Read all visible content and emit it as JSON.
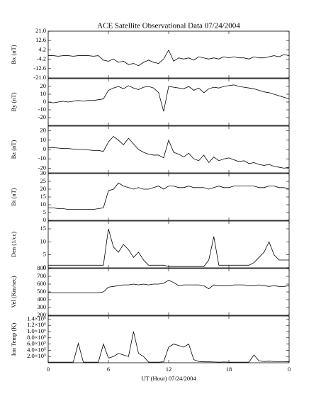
{
  "title": "ACE Satellite Observational Data   07/24/2004",
  "chart_data": [
    {
      "type": "line",
      "ylabel": "Bx (nT)",
      "color": "#000000",
      "xlim": [
        0,
        24
      ],
      "xticks": [
        0,
        6,
        12,
        18,
        {
          "value": 24,
          "label": "0"
        }
      ],
      "ylim": [
        -21,
        21
      ],
      "yticks": [
        {
          "value": 21,
          "label": "21.0"
        },
        12.6,
        4.2,
        -4.2,
        -12.6,
        {
          "value": -21,
          "label": "-21.0"
        }
      ],
      "x": [
        0,
        0.5,
        1,
        1.5,
        2,
        2.5,
        3,
        3.5,
        4,
        4.5,
        5,
        5.5,
        6,
        6.5,
        7,
        7.5,
        8,
        8.5,
        9,
        9.5,
        10,
        10.5,
        11,
        11.5,
        12,
        12.5,
        13,
        13.5,
        14,
        14.5,
        15,
        15.5,
        16,
        16.5,
        17,
        17.5,
        18,
        18.5,
        19,
        19.5,
        20,
        20.5,
        21,
        21.5,
        22,
        22.5,
        23,
        23.5,
        24
      ],
      "values": [
        -1,
        -1,
        -1.5,
        -1,
        -1,
        -1.5,
        -1,
        -1,
        -1,
        -1.5,
        -1,
        -5,
        -6,
        -4,
        -7,
        -6,
        -9,
        -8,
        -10,
        -7,
        -5,
        -7,
        -8,
        -4,
        4,
        -6,
        -3,
        -4,
        -3,
        -5,
        -2,
        -3,
        -4,
        -3,
        -4,
        -2,
        -3,
        -2,
        -3,
        -3,
        -4,
        -2,
        -3,
        -3,
        -2,
        -1,
        -2,
        0,
        -1
      ]
    },
    {
      "type": "line",
      "ylabel": "By (nT)",
      "color": "#000000",
      "xlim": [
        0,
        24
      ],
      "xticks": [
        0,
        6,
        12,
        18,
        {
          "value": 24,
          "label": "0"
        }
      ],
      "ylim": [
        -30,
        30
      ],
      "yticks": [
        20,
        10,
        0,
        -10,
        -20
      ],
      "x": [
        0,
        0.5,
        1,
        1.5,
        2,
        2.5,
        3,
        3.5,
        4,
        4.5,
        5,
        5.5,
        6,
        6.5,
        7,
        7.5,
        8,
        8.5,
        9,
        9.5,
        10,
        10.5,
        11,
        11.5,
        12,
        12.5,
        13,
        13.5,
        14,
        14.5,
        15,
        15.5,
        16,
        16.5,
        17,
        17.5,
        18,
        18.5,
        19,
        19.5,
        20,
        20.5,
        21,
        21.5,
        22,
        22.5,
        23,
        23.5,
        24
      ],
      "values": [
        0,
        -1,
        0,
        1,
        0,
        1,
        2,
        1,
        2,
        2,
        3,
        4,
        15,
        18,
        20,
        17,
        21,
        18,
        16,
        19,
        20,
        18,
        12,
        -12,
        20,
        19,
        18,
        17,
        20,
        15,
        18,
        12,
        17,
        19,
        18,
        20,
        21,
        22,
        20,
        19,
        18,
        17,
        15,
        13,
        12,
        10,
        8,
        6,
        4
      ]
    },
    {
      "type": "line",
      "ylabel": "Bz (nT)",
      "color": "#000000",
      "xlim": [
        0,
        24
      ],
      "xticks": [
        0,
        6,
        12,
        18,
        {
          "value": 24,
          "label": "0"
        }
      ],
      "ylim": [
        -25,
        25
      ],
      "yticks": [
        20,
        10,
        0,
        -10,
        -20
      ],
      "x": [
        0,
        0.5,
        1,
        1.5,
        2,
        2.5,
        3,
        3.5,
        4,
        4.5,
        5,
        5.5,
        6,
        6.5,
        7,
        7.5,
        8,
        8.5,
        9,
        9.5,
        10,
        10.5,
        11,
        11.5,
        12,
        12.5,
        13,
        13.5,
        14,
        14.5,
        15,
        15.5,
        16,
        16.5,
        17,
        17.5,
        18,
        18.5,
        19,
        19.5,
        20,
        20.5,
        21,
        21.5,
        22,
        22.5,
        23,
        23.5,
        24
      ],
      "values": [
        2,
        2,
        1.5,
        1,
        1,
        0.5,
        0,
        0,
        -0.5,
        -1,
        -1,
        -2,
        8,
        14,
        10,
        5,
        12,
        6,
        0,
        -3,
        -5,
        -6,
        -6,
        -9,
        10,
        -3,
        -5,
        -8,
        -4,
        -10,
        -12,
        -6,
        -14,
        -8,
        -12,
        -10,
        -9,
        -11,
        -13,
        -12,
        -15,
        -14,
        -16,
        -17,
        -16,
        -18,
        -19,
        -20,
        -19
      ]
    },
    {
      "type": "line",
      "ylabel": "Bt (nT)",
      "color": "#000000",
      "xlim": [
        0,
        24
      ],
      "xticks": [
        0,
        6,
        12,
        18,
        {
          "value": 24,
          "label": "0"
        }
      ],
      "ylim": [
        0,
        30
      ],
      "yticks": [
        0,
        5,
        10,
        15,
        20,
        25,
        30
      ],
      "x": [
        0,
        0.5,
        1,
        1.5,
        2,
        2.5,
        3,
        3.5,
        4,
        4.5,
        5,
        5.5,
        6,
        6.5,
        7,
        7.5,
        8,
        8.5,
        9,
        9.5,
        10,
        10.5,
        11,
        11.5,
        12,
        12.5,
        13,
        13.5,
        14,
        14.5,
        15,
        15.5,
        16,
        16.5,
        17,
        17.5,
        18,
        18.5,
        19,
        19.5,
        20,
        20.5,
        21,
        21.5,
        22,
        22.5,
        23,
        23.5,
        24
      ],
      "values": [
        8,
        8,
        7.5,
        7.5,
        7,
        7,
        7,
        7,
        7,
        7,
        7.5,
        8,
        19,
        20,
        24,
        22,
        21,
        20,
        21,
        20,
        20,
        21,
        22,
        20,
        22,
        22,
        21,
        21,
        22,
        21,
        21,
        21,
        20,
        21,
        22,
        21,
        21,
        22,
        22,
        22,
        22,
        22,
        21,
        21,
        22,
        22,
        21,
        21,
        20
      ]
    },
    {
      "type": "line",
      "ylabel": "Den (1/cc)",
      "color": "#000000",
      "xlim": [
        0,
        24
      ],
      "xticks": [
        0,
        6,
        12,
        18,
        {
          "value": 24,
          "label": "0"
        }
      ],
      "ylim": [
        0,
        18
      ],
      "yticks": [
        0,
        5,
        10,
        15
      ],
      "x": [
        0,
        0.5,
        1,
        1.5,
        2,
        2.5,
        3,
        3.5,
        4,
        4.5,
        5,
        5.5,
        6,
        6.5,
        7,
        7.5,
        8,
        8.5,
        9,
        9.5,
        10,
        10.5,
        11,
        11.5,
        12,
        12.5,
        13,
        13.5,
        14,
        14.5,
        15,
        15.5,
        16,
        16.5,
        17,
        17.5,
        18,
        18.5,
        19,
        19.5,
        20,
        20.5,
        21,
        21.5,
        22,
        22.5,
        23,
        23.5,
        24
      ],
      "values": [
        1,
        1,
        1,
        1,
        1,
        1,
        1,
        1,
        1,
        1,
        1,
        1,
        15,
        8,
        6,
        9,
        7,
        4,
        6,
        3,
        1,
        1,
        1,
        1,
        0.5,
        0.5,
        0.5,
        0.5,
        0.5,
        0.5,
        0.5,
        0.5,
        3,
        12,
        1,
        1,
        1,
        1,
        1,
        1,
        1,
        2,
        4,
        6,
        10,
        5,
        3,
        3,
        3
      ]
    },
    {
      "type": "line",
      "ylabel": "Vel (Km/sec)",
      "color": "#000000",
      "xlim": [
        0,
        24
      ],
      "xticks": [
        0,
        6,
        12,
        18,
        {
          "value": 24,
          "label": "0"
        }
      ],
      "ylim": [
        200,
        800
      ],
      "yticks": [
        200,
        300,
        400,
        500,
        600,
        700,
        800
      ],
      "x": [
        0,
        0.5,
        1,
        1.5,
        2,
        2.5,
        3,
        3.5,
        4,
        4.5,
        5,
        5.5,
        6,
        6.5,
        7,
        7.5,
        8,
        8.5,
        9,
        9.5,
        10,
        10.5,
        11,
        11.5,
        12,
        12.5,
        13,
        13.5,
        14,
        14.5,
        15,
        15.5,
        16,
        16.5,
        17,
        17.5,
        18,
        18.5,
        19,
        19.5,
        20,
        20.5,
        21,
        21.5,
        22,
        22.5,
        23,
        23.5,
        24
      ],
      "values": [
        490,
        490,
        490,
        490,
        490,
        490,
        490,
        490,
        490,
        490,
        490,
        500,
        560,
        570,
        580,
        590,
        590,
        600,
        590,
        600,
        590,
        600,
        600,
        610,
        650,
        620,
        580,
        590,
        590,
        590,
        590,
        580,
        540,
        590,
        580,
        580,
        580,
        590,
        590,
        590,
        580,
        580,
        590,
        580,
        570,
        580,
        570,
        570,
        580
      ]
    },
    {
      "type": "line",
      "ylabel": "Ion Temp (K)",
      "xlabel": "UT (Hour)  07/24/2004",
      "color": "#000000",
      "xlim": [
        0,
        24
      ],
      "xticks": [
        0,
        6,
        12,
        18,
        {
          "value": 24,
          "label": "0"
        }
      ],
      "ylim": [
        0,
        1500000
      ],
      "yticks": [
        {
          "value": 200000,
          "label": "2.0×10⁵"
        },
        {
          "value": 400000,
          "label": "4.0×10⁵"
        },
        {
          "value": 600000,
          "label": "6.0×10⁵"
        },
        {
          "value": 800000,
          "label": "8.0×10⁵"
        },
        {
          "value": 1000000,
          "label": "1.0×10⁶"
        },
        {
          "value": 1200000,
          "label": "1.2×10⁶"
        },
        {
          "value": 1400000,
          "label": "1.4×10⁶"
        }
      ],
      "x": [
        0,
        0.5,
        1,
        1.5,
        2,
        2.5,
        3,
        3.5,
        4,
        4.5,
        5,
        5.5,
        6,
        6.5,
        7,
        7.5,
        8,
        8.5,
        9,
        9.5,
        10,
        10.5,
        11,
        11.5,
        12,
        12.5,
        13,
        13.5,
        14,
        14.5,
        15,
        15.5,
        16,
        16.5,
        17,
        17.5,
        18,
        18.5,
        19,
        19.5,
        20,
        20.5,
        21,
        21.5,
        22,
        22.5,
        23,
        23.5,
        24
      ],
      "values": [
        20000,
        20000,
        20000,
        20000,
        20000,
        20000,
        620000,
        20000,
        20000,
        20000,
        20000,
        600000,
        150000,
        200000,
        300000,
        250000,
        200000,
        1000000,
        300000,
        200000,
        20000,
        20000,
        20000,
        30000,
        500000,
        600000,
        550000,
        500000,
        600000,
        100000,
        40000,
        30000,
        30000,
        25000,
        20000,
        25000,
        20000,
        20000,
        20000,
        20000,
        20000,
        250000,
        60000,
        40000,
        50000,
        40000,
        40000,
        40000,
        30000
      ]
    }
  ]
}
